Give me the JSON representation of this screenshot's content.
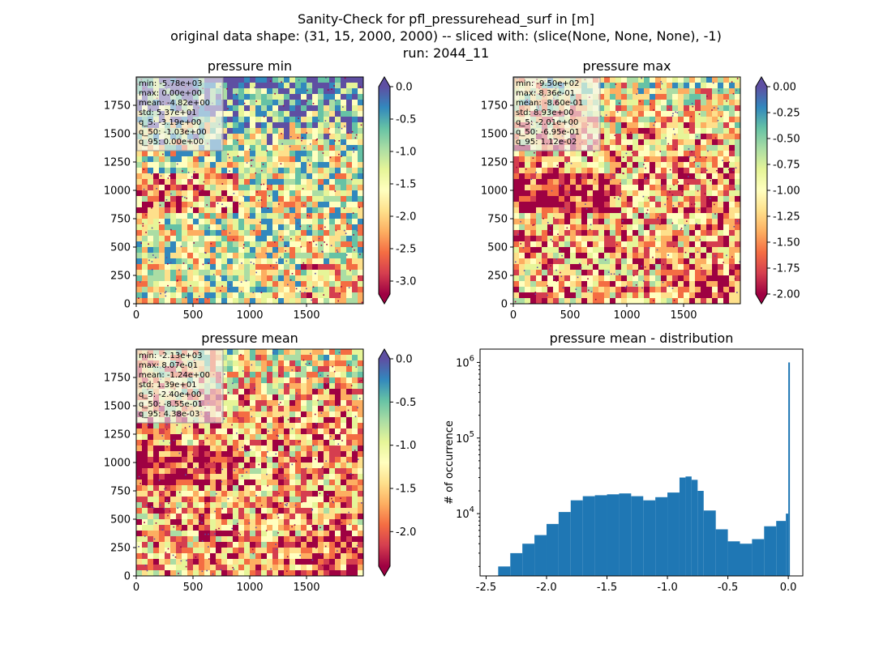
{
  "figure": {
    "title_lines": [
      "Sanity-Check for pfl_pressurehead_surf in [m]",
      "original data shape: (31, 15, 2000, 2000) -- sliced with: (slice(None, None, None), -1)",
      "run: 2044_11"
    ]
  },
  "colors": {
    "spectral": [
      "#9e0142",
      "#d53e4f",
      "#f46d43",
      "#fdae61",
      "#fee08b",
      "#ffffbf",
      "#e6f598",
      "#abdda4",
      "#66c2a5",
      "#3288bd",
      "#5e4fa2"
    ],
    "histogram_bar": "#1f77b4",
    "stats_box_bg": "#f2f2f2",
    "stats_box_border": "#999999"
  },
  "chart_data": [
    {
      "type": "heatmap",
      "panel": "pressure-min",
      "title": "pressure min",
      "colormap": "Spectral",
      "xlim": [
        0,
        2000
      ],
      "ylim": [
        0,
        2000
      ],
      "xticks": [
        "0",
        "500",
        "1000",
        "1500"
      ],
      "yticks": [
        "0",
        "250",
        "500",
        "750",
        "1000",
        "1250",
        "1500",
        "1750"
      ],
      "colorbar": {
        "vmin": -3.2,
        "vmax": 0.0,
        "ticks": [
          "0.0",
          "-0.5",
          "-1.0",
          "-1.5",
          "-2.0",
          "-2.5",
          "-3.0"
        ],
        "extend": "both"
      },
      "stats": [
        "min: -5.78e+03",
        "max: 0.00e+00",
        "mean: -4.82e+00",
        "std: 5.37e+01",
        "q_5: -3.19e+00",
        "q_50: -1.03e+00",
        "q_95: 0.00e+00"
      ]
    },
    {
      "type": "heatmap",
      "panel": "pressure-max",
      "title": "pressure max",
      "colormap": "Spectral",
      "xlim": [
        0,
        2000
      ],
      "ylim": [
        0,
        2000
      ],
      "xticks": [
        "0",
        "500",
        "1000",
        "1500"
      ],
      "yticks": [
        "0",
        "250",
        "500",
        "750",
        "1000",
        "1250",
        "1500",
        "1750"
      ],
      "colorbar": {
        "vmin": -2.0,
        "vmax": 0.0,
        "ticks": [
          "0.00",
          "-0.25",
          "-0.50",
          "-0.75",
          "-1.00",
          "-1.25",
          "-1.50",
          "-1.75",
          "-2.00"
        ],
        "extend": "both"
      },
      "stats": [
        "min: -9.50e+02",
        "max: 8.36e-01",
        "mean: -8.60e-01",
        "std: 8.93e+00",
        "q_5: -2.01e+00",
        "q_50: -6.95e-01",
        "q_95: 1.12e-02"
      ]
    },
    {
      "type": "heatmap",
      "panel": "pressure-mean",
      "title": "pressure mean",
      "colormap": "Spectral",
      "xlim": [
        0,
        2000
      ],
      "ylim": [
        0,
        2000
      ],
      "xticks": [
        "0",
        "500",
        "1000",
        "1500"
      ],
      "yticks": [
        "0",
        "250",
        "500",
        "750",
        "1000",
        "1250",
        "1500",
        "1750"
      ],
      "colorbar": {
        "vmin": -2.4,
        "vmax": 0.0,
        "ticks": [
          "0.0",
          "-0.5",
          "-1.0",
          "-1.5",
          "-2.0"
        ],
        "extend": "both"
      },
      "stats": [
        "min: -2.13e+03",
        "max: 8.07e-01",
        "mean: -1.24e+00",
        "std: 1.39e+01",
        "q_5: -2.40e+00",
        "q_50: -8.55e-01",
        "q_95: 4.38e-03"
      ]
    },
    {
      "type": "bar",
      "panel": "pressure-mean-distribution",
      "title": "pressure mean - distribution",
      "ylabel": "# of occurrence",
      "yscale": "log",
      "xlim": [
        -2.55,
        0.12
      ],
      "ylim": [
        1500,
        1500000
      ],
      "xticks": [
        "-2.5",
        "-2.0",
        "-1.5",
        "-1.0",
        "-0.5",
        "0.0"
      ],
      "yticks": [
        {
          "base": "10",
          "exp": "4"
        },
        {
          "base": "10",
          "exp": "5"
        },
        {
          "base": "10",
          "exp": "6"
        }
      ],
      "x": [
        -2.4,
        -2.3,
        -2.2,
        -2.1,
        -2.0,
        -1.9,
        -1.8,
        -1.7,
        -1.6,
        -1.5,
        -1.4,
        -1.3,
        -1.2,
        -1.1,
        -1.0,
        -0.9,
        -0.85,
        -0.8,
        -0.75,
        -0.7,
        -0.6,
        -0.5,
        -0.4,
        -0.3,
        -0.2,
        -0.1,
        -0.02,
        0.0
      ],
      "values": [
        2000,
        3000,
        4000,
        5200,
        7300,
        10500,
        15000,
        17000,
        17500,
        18000,
        18500,
        17000,
        15000,
        16500,
        19000,
        30000,
        31000,
        28000,
        20000,
        11000,
        6200,
        4300,
        4000,
        4600,
        6800,
        8000,
        10000,
        1000000
      ]
    }
  ]
}
